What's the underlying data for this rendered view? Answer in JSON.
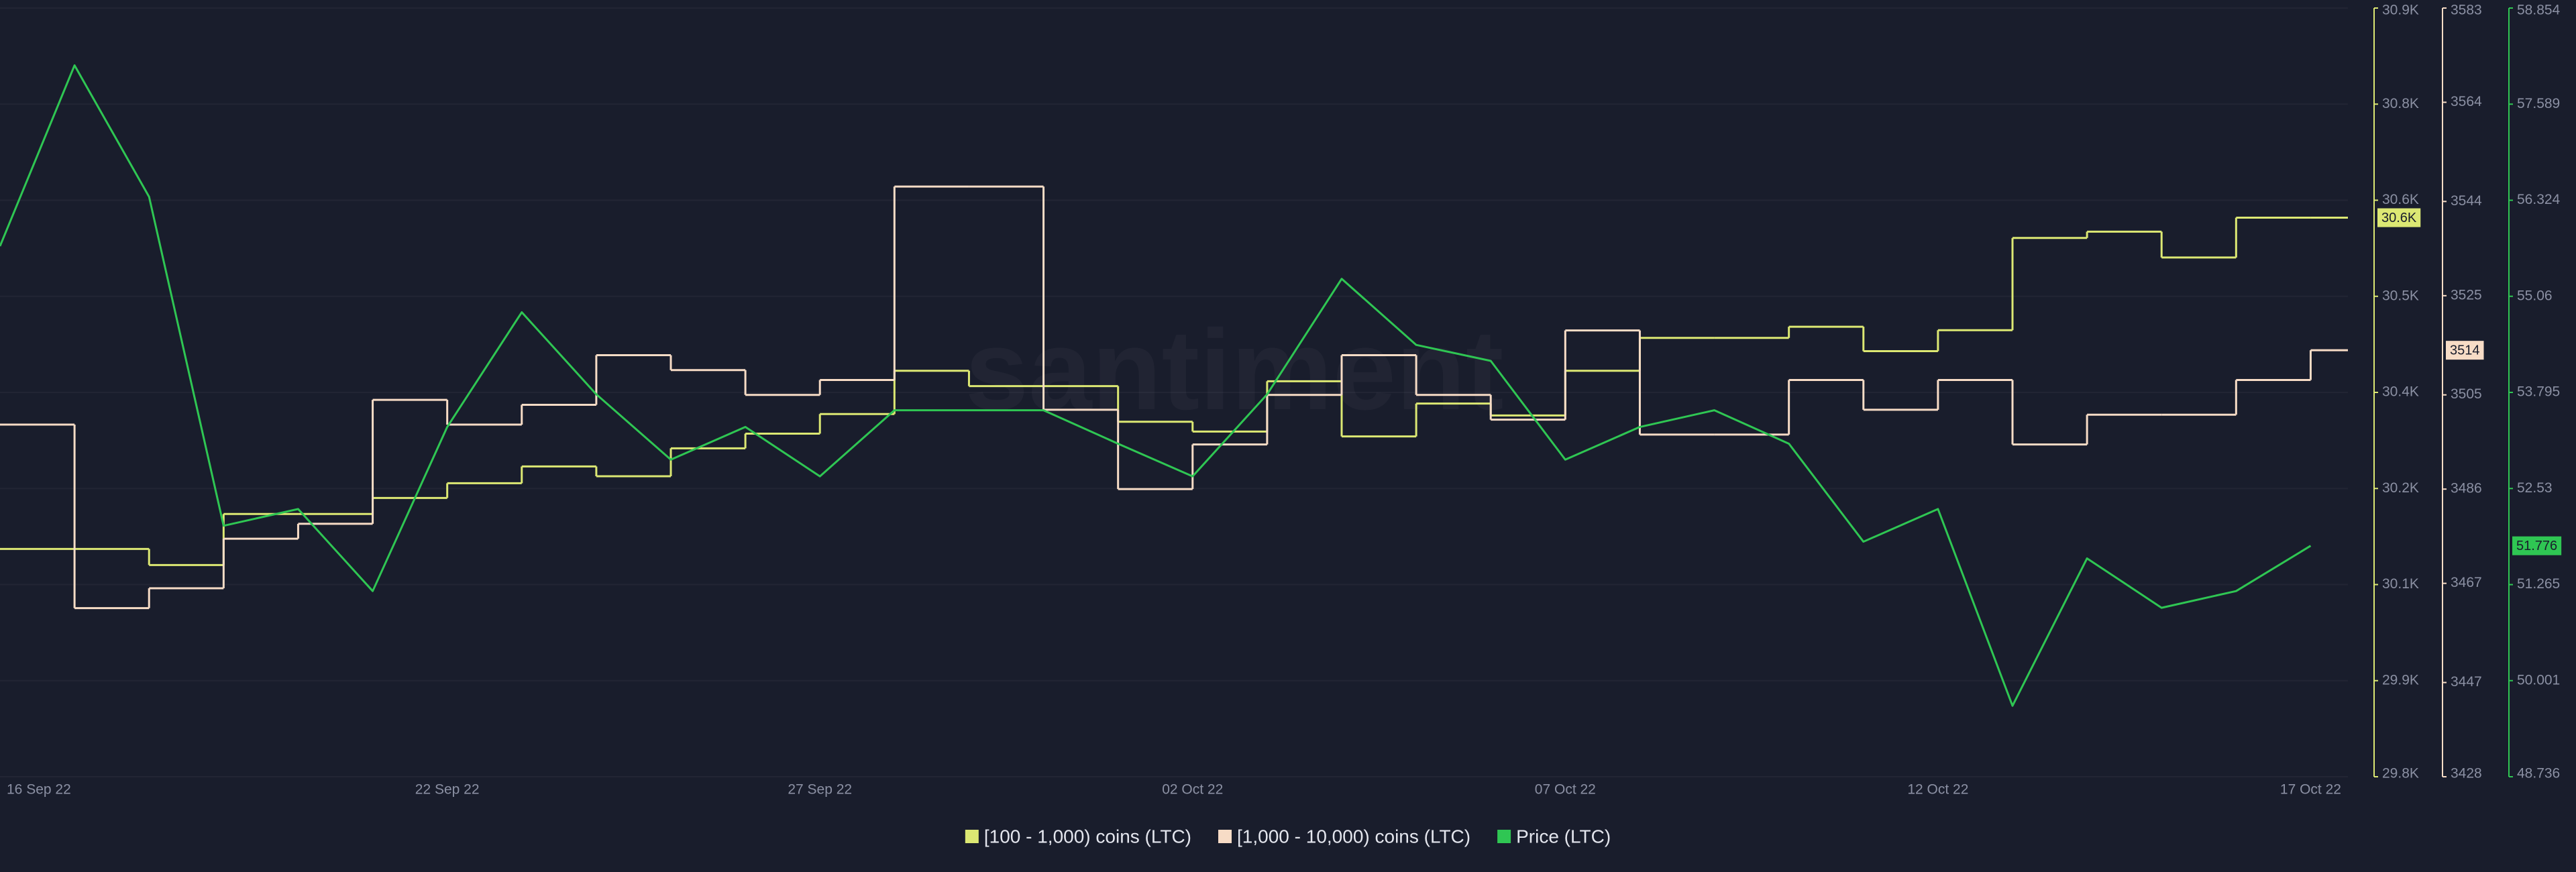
{
  "chart_data": {
    "type": "line",
    "watermark": "santiment",
    "x": [
      "16 Sep 22",
      "17 Sep 22",
      "18 Sep 22",
      "19 Sep 22",
      "20 Sep 22",
      "21 Sep 22",
      "22 Sep 22",
      "23 Sep 22",
      "24 Sep 22",
      "25 Sep 22",
      "26 Sep 22",
      "27 Sep 22",
      "28 Sep 22",
      "29 Sep 22",
      "30 Sep 22",
      "01 Oct 22",
      "02 Oct 22",
      "03 Oct 22",
      "04 Oct 22",
      "05 Oct 22",
      "06 Oct 22",
      "07 Oct 22",
      "08 Oct 22",
      "09 Oct 22",
      "10 Oct 22",
      "11 Oct 22",
      "12 Oct 22",
      "13 Oct 22",
      "14 Oct 22",
      "15 Oct 22",
      "16 Oct 22",
      "17 Oct 22"
    ],
    "xticks": [
      "16 Sep 22",
      "22 Sep 22",
      "27 Sep 22",
      "02 Oct 22",
      "07 Oct 22",
      "12 Oct 22",
      "17 Oct 22"
    ],
    "series": [
      {
        "name": "[100 - 1,000) coins (LTC)",
        "color": "#dce873",
        "axis": "y",
        "step": true,
        "values": [
          30126,
          30126,
          30103,
          30176,
          30176,
          30199,
          30220,
          30244,
          30230,
          30270,
          30291,
          30319,
          30381,
          30359,
          30359,
          30308,
          30294,
          30366,
          30287,
          30334,
          30317,
          30381,
          30428,
          30428,
          30444,
          30409,
          30439,
          30571,
          30580,
          30543,
          30600,
          30600
        ],
        "value_labels": [
          null,
          null,
          null,
          null,
          null,
          null,
          null,
          null,
          null,
          null,
          null,
          null,
          null,
          null,
          null,
          null,
          null,
          null,
          null,
          null,
          null,
          null,
          null,
          null,
          null,
          null,
          null,
          null,
          null,
          null,
          null,
          "30.6K"
        ]
      },
      {
        "name": "[1,000 - 10,000) coins (LTC)",
        "color": "#f7dcc6",
        "axis": "y2",
        "step": true,
        "values": [
          3499,
          3462,
          3466,
          3476,
          3479,
          3504,
          3499,
          3503,
          3513,
          3510,
          3505,
          3508,
          3547,
          3547,
          3502,
          3486,
          3495,
          3505,
          3513,
          3505,
          3500,
          3518,
          3497,
          3497,
          3508,
          3502,
          3508,
          3495,
          3501,
          3501,
          3508,
          3514
        ]
      },
      {
        "name": "Price (LTC)",
        "color": "#2fc653",
        "axis": "y3",
        "step": false,
        "values": [
          55.72,
          58.1,
          56.37,
          52.04,
          52.26,
          51.18,
          53.34,
          54.85,
          53.77,
          52.91,
          53.34,
          52.69,
          53.56,
          53.56,
          53.56,
          53.12,
          52.69,
          53.77,
          55.29,
          54.42,
          54.21,
          52.91,
          53.34,
          53.56,
          53.12,
          51.83,
          52.26,
          49.67,
          51.61,
          50.96,
          51.18,
          51.776
        ]
      }
    ],
    "ylim": [
      29800,
      30900
    ],
    "yticks": [
      {
        "value": 29800,
        "label": "29.8K"
      },
      {
        "value": 29937.5,
        "label": "29.9K"
      },
      {
        "value": 30075,
        "label": "30.1K"
      },
      {
        "value": 30212.5,
        "label": "30.2K"
      },
      {
        "value": 30350,
        "label": "30.4K"
      },
      {
        "value": 30487.5,
        "label": "30.5K"
      },
      {
        "value": 30625,
        "label": "30.6K"
      },
      {
        "value": 30762.5,
        "label": "30.8K"
      },
      {
        "value": 30900,
        "label": "30.9K"
      }
    ],
    "y2lim": [
      3428,
      3583
    ],
    "y2ticks": [
      3428,
      3447,
      3467,
      3486,
      3505,
      3525,
      3544,
      3564,
      3583
    ],
    "y3lim": [
      48.736,
      58.854
    ],
    "y3ticks": [
      48.736,
      50.001,
      51.265,
      52.53,
      53.795,
      55.06,
      56.324,
      57.589,
      58.854
    ],
    "grid": true,
    "legend": "bottom"
  }
}
